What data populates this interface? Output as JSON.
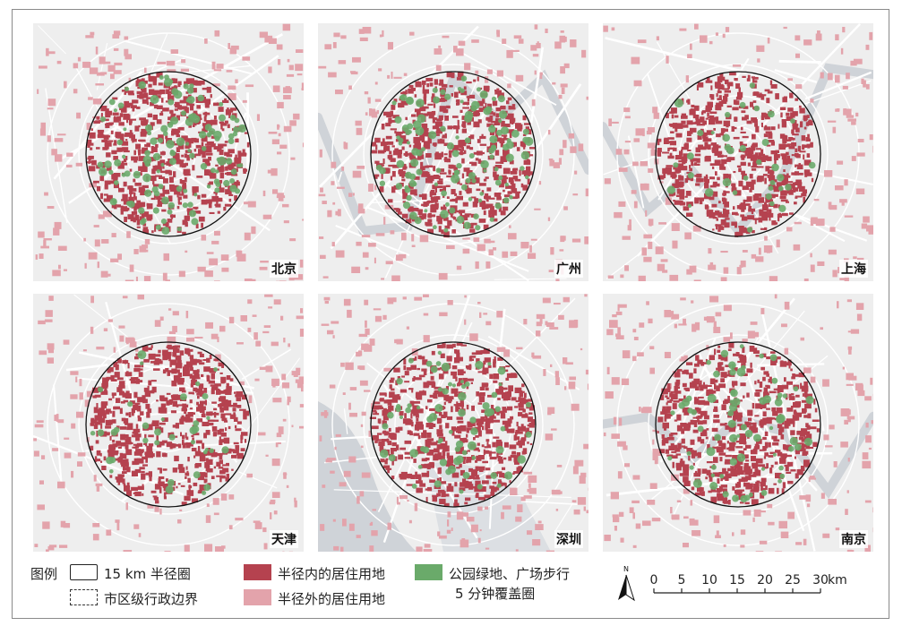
{
  "panels": [
    {
      "key": "beijing",
      "label": "北京",
      "green": "high",
      "water": "none"
    },
    {
      "key": "guangzhou",
      "label": "广州",
      "green": "high",
      "water": "river"
    },
    {
      "key": "shanghai",
      "label": "上海",
      "green": "low",
      "water": "river"
    },
    {
      "key": "tianjin",
      "label": "天津",
      "green": "low",
      "water": "none"
    },
    {
      "key": "shenzhen",
      "label": "深圳",
      "green": "medium",
      "water": "sea"
    },
    {
      "key": "nanjing",
      "label": "南京",
      "green": "medium",
      "water": "river"
    }
  ],
  "legend": {
    "title": "图例",
    "circle_label": "15 km 半径圈",
    "boundary_label": "市区级行政边界",
    "inside_label": "半径内的居住用地",
    "outside_label": "半径外的居住用地",
    "green_label_line1": "公园绿地、广场步行",
    "green_label_line2": "5 分钟覆盖圈"
  },
  "scale": {
    "north": "N",
    "ticks": [
      "0",
      "5",
      "10",
      "15",
      "20",
      "25",
      "30"
    ],
    "unit": "km"
  },
  "colors": {
    "inside": "#b5424f",
    "outside": "#e3a3ab",
    "green": "#6aaa6a",
    "map_bg": "#eeeeee",
    "water": "#cfd3d8"
  }
}
